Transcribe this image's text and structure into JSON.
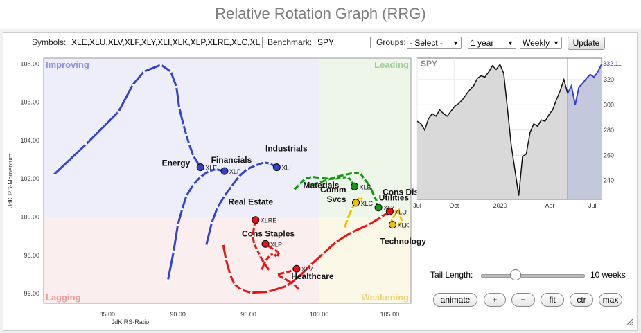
{
  "title": "Relative Rotation Graph (RRG)",
  "controls": {
    "symbols_label": "Symbols:",
    "symbols_value": "XLE,XLU,XLV,XLF,XLY,XLI,XLK,XLP,XLRE,XLC,XL",
    "benchmark_label": "Benchmark:",
    "benchmark_value": "SPY",
    "groups_label": "Groups:",
    "groups_value": "- Select -",
    "period_value": "1 year",
    "frequency_value": "Weekly",
    "update_label": "Update"
  },
  "tail": {
    "label": "Tail Length:",
    "value_text": "10 weeks",
    "value_fraction": 0.3
  },
  "buttons": {
    "animate": "animate",
    "plus": "+",
    "minus": "−",
    "fit": "fit",
    "ctr": "ctr",
    "max": "max"
  },
  "colors": {
    "improving": "#4a5fd1",
    "leading": "#1f8a1f",
    "weakening": "#f2c200",
    "lagging": "#ee1111"
  },
  "chart_data": [
    {
      "type": "scatter",
      "title": "",
      "xlabel": "JdK RS-Ratio",
      "ylabel": "JdK RS-Momentum",
      "xlim": [
        80.5,
        106.5
      ],
      "ylim": [
        95.5,
        108.3
      ],
      "xticks": [
        85.0,
        90.0,
        95.0,
        100.0,
        105.0
      ],
      "xtick_labels": [
        "85.00",
        "90.00",
        "95.00",
        "100.00",
        "105.00"
      ],
      "yticks": [
        96.0,
        98.0,
        100.0,
        102.0,
        104.0,
        106.0,
        108.0
      ],
      "ytick_labels": [
        "96.00",
        "98.00",
        "100.00",
        "102.00",
        "104.00",
        "106.00",
        "108.00"
      ],
      "quadrants": {
        "top_left": "Improving",
        "top_right": "Leading",
        "bottom_right": "Weakening",
        "bottom_left": "Lagging"
      },
      "series": [
        {
          "symbol": "XLE",
          "name": "Energy",
          "color": "#3344cc",
          "points": [
            [
              81.2,
              102.2
            ],
            [
              83.5,
              103.8
            ],
            [
              85.8,
              105.5
            ],
            [
              86.8,
              106.9
            ],
            [
              87.6,
              107.6
            ],
            [
              88.8,
              107.95
            ],
            [
              89.5,
              107.6
            ],
            [
              89.9,
              106.8
            ],
            [
              90.1,
              105.7
            ],
            [
              90.4,
              104.8
            ],
            [
              90.6,
              104.3
            ],
            [
              90.8,
              103.8
            ],
            [
              91.1,
              103.2
            ],
            [
              91.6,
              102.6
            ]
          ]
        },
        {
          "symbol": "XLF",
          "name": "Financials",
          "color": "#3344cc",
          "points": [
            [
              89.3,
              96.7
            ],
            [
              89.7,
              98.2
            ],
            [
              90.0,
              99.6
            ],
            [
              90.3,
              100.4
            ],
            [
              90.6,
              101.1
            ],
            [
              91.1,
              101.7
            ],
            [
              91.6,
              102.1
            ],
            [
              92.2,
              102.4
            ],
            [
              92.7,
              102.5
            ],
            [
              93.3,
              102.4
            ]
          ]
        },
        {
          "symbol": "XLI",
          "name": "Industrials",
          "color": "#3344cc",
          "points": [
            [
              92.0,
              98.5
            ],
            [
              92.4,
              99.7
            ],
            [
              92.8,
              100.5
            ],
            [
              93.3,
              101.1
            ],
            [
              93.8,
              101.6
            ],
            [
              94.3,
              102.1
            ],
            [
              94.9,
              102.5
            ],
            [
              95.5,
              102.7
            ],
            [
              96.1,
              102.85
            ],
            [
              96.5,
              102.8
            ],
            [
              97.0,
              102.6
            ]
          ]
        },
        {
          "symbol": "XLB",
          "name": "Materials",
          "color": "#119911",
          "points": [
            [
              98.2,
              101.4
            ],
            [
              98.6,
              101.7
            ],
            [
              99.0,
              102.0
            ],
            [
              99.5,
              102.1
            ],
            [
              100.1,
              102.05
            ],
            [
              100.7,
              102.0
            ],
            [
              101.1,
              102.0
            ],
            [
              101.6,
              102.05
            ],
            [
              102.0,
              102.1
            ],
            [
              102.3,
              101.9
            ],
            [
              102.5,
              101.6
            ]
          ]
        },
        {
          "symbol": "XLY",
          "name": "Cons Disc",
          "color": "#119911",
          "points": [
            [
              99.3,
              101.6
            ],
            [
              100.0,
              101.8
            ],
            [
              100.6,
              101.95
            ],
            [
              101.2,
              102.1
            ],
            [
              101.8,
              102.2
            ],
            [
              102.4,
              102.3
            ],
            [
              102.9,
              102.3
            ],
            [
              103.2,
              102.0
            ],
            [
              103.6,
              101.6
            ],
            [
              103.9,
              101.1
            ],
            [
              104.1,
              100.8
            ],
            [
              104.2,
              100.5
            ]
          ]
        },
        {
          "symbol": "XLC",
          "name": "Comm Svcs",
          "color": "#f0c000",
          "points": [
            [
              101.8,
              99.4
            ],
            [
              102.0,
              99.9
            ],
            [
              102.3,
              100.4
            ],
            [
              102.6,
              100.8
            ],
            [
              102.9,
              101.05
            ],
            [
              103.1,
              100.9
            ],
            [
              102.9,
              100.75
            ],
            [
              102.6,
              100.75
            ]
          ]
        },
        {
          "symbol": "XLK",
          "name": "Technology",
          "color": "#f0c000",
          "points": [
            [
              105.0,
              99.6
            ],
            [
              105.2,
              99.9
            ],
            [
              105.4,
              100.2
            ],
            [
              105.5,
              100.4
            ],
            [
              105.6,
              100.5
            ],
            [
              105.7,
              100.1
            ],
            [
              105.9,
              99.75
            ],
            [
              105.5,
              99.55
            ],
            [
              105.2,
              99.6
            ]
          ]
        },
        {
          "symbol": "XLRE",
          "name": "Real Estate",
          "color": "#ee1111",
          "points": [
            [
              96.5,
              97.2
            ],
            [
              96.1,
              97.6
            ],
            [
              95.8,
              98.0
            ],
            [
              95.6,
              98.3
            ],
            [
              95.4,
              98.6
            ],
            [
              95.3,
              99.0
            ],
            [
              95.4,
              99.5
            ],
            [
              95.5,
              99.85
            ]
          ]
        },
        {
          "symbol": "XLU",
          "name": "Utilities",
          "color": "#ee1111",
          "points": [
            [
              93.2,
              98.6
            ],
            [
              93.4,
              97.8
            ],
            [
              93.7,
              97.0
            ],
            [
              94.0,
              96.5
            ],
            [
              94.5,
              96.2
            ],
            [
              95.2,
              96.05
            ],
            [
              96.4,
              96.1
            ],
            [
              97.7,
              96.4
            ],
            [
              98.6,
              96.9
            ],
            [
              99.4,
              97.5
            ],
            [
              100.3,
              98.1
            ],
            [
              101.2,
              98.7
            ],
            [
              102.3,
              99.2
            ],
            [
              103.5,
              99.6
            ],
            [
              104.4,
              100.0
            ],
            [
              105.0,
              100.3
            ]
          ]
        },
        {
          "symbol": "XLP",
          "name": "Cons Staples",
          "color": "#ee1111",
          "points": [
            [
              95.9,
              97.2
            ],
            [
              96.2,
              97.7
            ],
            [
              96.5,
              98.0
            ],
            [
              96.8,
              98.1
            ],
            [
              97.0,
              97.9
            ],
            [
              97.2,
              98.2
            ],
            [
              97.3,
              98.1
            ],
            [
              96.8,
              98.3
            ],
            [
              96.2,
              98.6
            ]
          ]
        },
        {
          "symbol": "XLV",
          "name": "Healthcare",
          "color": "#ee1111",
          "points": [
            [
              98.6,
              96.2
            ],
            [
              98.2,
              96.5
            ],
            [
              97.5,
              96.8
            ],
            [
              97.0,
              97.0
            ],
            [
              97.6,
              97.1
            ],
            [
              98.1,
              97.2
            ],
            [
              98.4,
              97.3
            ]
          ]
        }
      ]
    },
    {
      "type": "line",
      "title": "SPY",
      "x_tick_labels": [
        "Jul",
        "Oct",
        "2020",
        "Apr",
        "Jul"
      ],
      "yticks": [
        240,
        260,
        280,
        300,
        320
      ],
      "ylim": [
        225,
        337
      ],
      "last_value": "332.11",
      "values": [
        287,
        285,
        280,
        289,
        293,
        291,
        296,
        293,
        291,
        295,
        299,
        301,
        304,
        308,
        312,
        315,
        321,
        323,
        322,
        326,
        331,
        328,
        332,
        325,
        297,
        268,
        248,
        228,
        259,
        261,
        278,
        285,
        283,
        288,
        287,
        292,
        296,
        304,
        311,
        320,
        309,
        315,
        300,
        314,
        317,
        321,
        324,
        322,
        326,
        332
      ],
      "highlight_from_index": 40
    }
  ]
}
